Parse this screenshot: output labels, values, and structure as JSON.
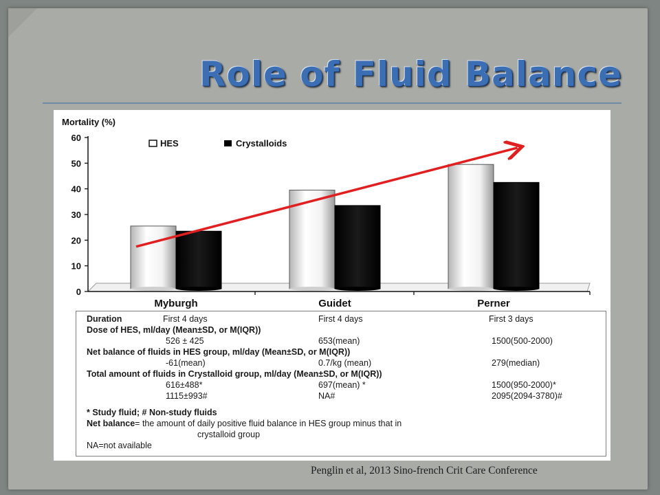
{
  "slide": {
    "title": "Role of Fluid Balance",
    "citation": "Penglin et al, 2013 Sino-french Crit Care Conference"
  },
  "colors": {
    "title": "#3c6eb4",
    "hes_bar": "#f2f2f2",
    "crystalloid_bar": "#0a0a0a",
    "trend_arrow": "#e02020"
  },
  "chart_data": {
    "type": "bar",
    "ylabel": "Mortality (%)",
    "xlabel": "",
    "ylim": [
      0,
      60
    ],
    "yticks": [
      "0",
      "10",
      "20",
      "30",
      "40",
      "50",
      "60"
    ],
    "categories": [
      "Myburgh",
      "Guidet",
      "Perner"
    ],
    "series": [
      {
        "name": "HES",
        "values": [
          25.5,
          39.5,
          49.5
        ]
      },
      {
        "name": "Crystalloids",
        "values": [
          23.5,
          33.5,
          42.5
        ]
      }
    ],
    "legend": "top-left",
    "grid": false,
    "annotation": {
      "type": "trend-arrow",
      "from": [
        0,
        17.5
      ],
      "to": [
        2.15,
        56
      ]
    }
  },
  "table": {
    "rows": [
      {
        "label": "Duration",
        "values": [
          "First 4 days",
          "First 4 days",
          "First 3 days"
        ]
      },
      {
        "label": "Dose of HES, ml/day (Mean±SD, or M(IQR))",
        "values": []
      },
      {
        "label": "",
        "values": [
          "526 ± 425",
          "653(mean)",
          "1500(500-2000)"
        ]
      },
      {
        "label": "Net balance of fluids in HES group, ml/day (Mean±SD, or M(IQR))",
        "values": []
      },
      {
        "label": "",
        "values": [
          "-61(mean)",
          "0.7/kg (mean)",
          "279(median)"
        ]
      },
      {
        "label": "Total amount of fluids in Crystalloid group, ml/day (Mean±SD, or M(IQR))",
        "values": []
      },
      {
        "label": "",
        "values": [
          "616±488*",
          "697(mean) *",
          "1500(950-2000)*"
        ]
      },
      {
        "label": "",
        "values": [
          "1115±993#",
          "NA#",
          "2095(2094-3780)#"
        ]
      }
    ],
    "notes": {
      "study_fluid": "* Study fluid; # Non-study fluids",
      "net_balance_term": "Net balance",
      "net_balance_def": "= the amount of daily positive fluid balance in HES group minus that in",
      "net_balance_def2": "crystalloid group",
      "na": "NA=not available"
    }
  }
}
